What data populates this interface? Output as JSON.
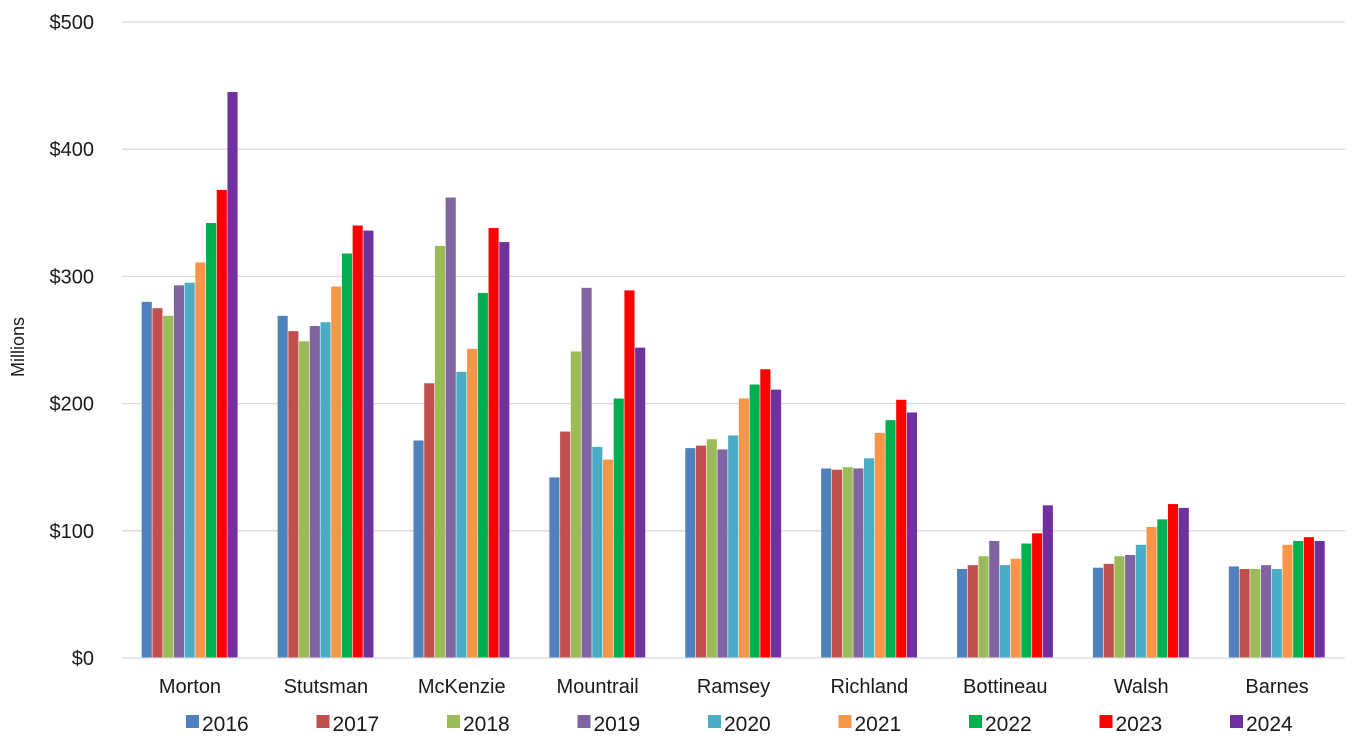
{
  "chart_data": {
    "type": "bar",
    "title": "",
    "xlabel": "",
    "ylabel": "Millions",
    "ylim": [
      0,
      500
    ],
    "yticks": [
      0,
      100,
      200,
      300,
      400,
      500
    ],
    "ytick_labels": [
      "$0",
      "$100",
      "$200",
      "$300",
      "$400",
      "$500"
    ],
    "grid": true,
    "legend_position": "bottom",
    "categories": [
      "Morton",
      "Stutsman",
      "McKenzie",
      "Mountrail",
      "Ramsey",
      "Richland",
      "Bottineau",
      "Walsh",
      "Barnes"
    ],
    "series": [
      {
        "name": "2016",
        "color": "#4f81bd",
        "values": [
          280,
          269,
          171,
          142,
          165,
          149,
          70,
          71,
          72
        ]
      },
      {
        "name": "2017",
        "color": "#c0504d",
        "values": [
          275,
          257,
          216,
          178,
          167,
          148,
          73,
          74,
          70
        ]
      },
      {
        "name": "2018",
        "color": "#9bbb59",
        "values": [
          269,
          249,
          324,
          241,
          172,
          150,
          80,
          80,
          70
        ]
      },
      {
        "name": "2019",
        "color": "#8064a2",
        "values": [
          293,
          261,
          362,
          291,
          164,
          149,
          92,
          81,
          73
        ]
      },
      {
        "name": "2020",
        "color": "#4bacc6",
        "values": [
          295,
          264,
          225,
          166,
          175,
          157,
          73,
          89,
          70
        ]
      },
      {
        "name": "2021",
        "color": "#f79646",
        "values": [
          311,
          292,
          243,
          156,
          204,
          177,
          78,
          103,
          89
        ]
      },
      {
        "name": "2022",
        "color": "#00b050",
        "values": [
          342,
          318,
          287,
          204,
          215,
          187,
          90,
          109,
          92
        ]
      },
      {
        "name": "2023",
        "color": "#ff0000",
        "values": [
          368,
          340,
          338,
          289,
          227,
          203,
          98,
          121,
          95
        ]
      },
      {
        "name": "2024",
        "color": "#7030a0",
        "values": [
          445,
          336,
          327,
          244,
          211,
          193,
          120,
          118,
          92
        ]
      }
    ]
  }
}
